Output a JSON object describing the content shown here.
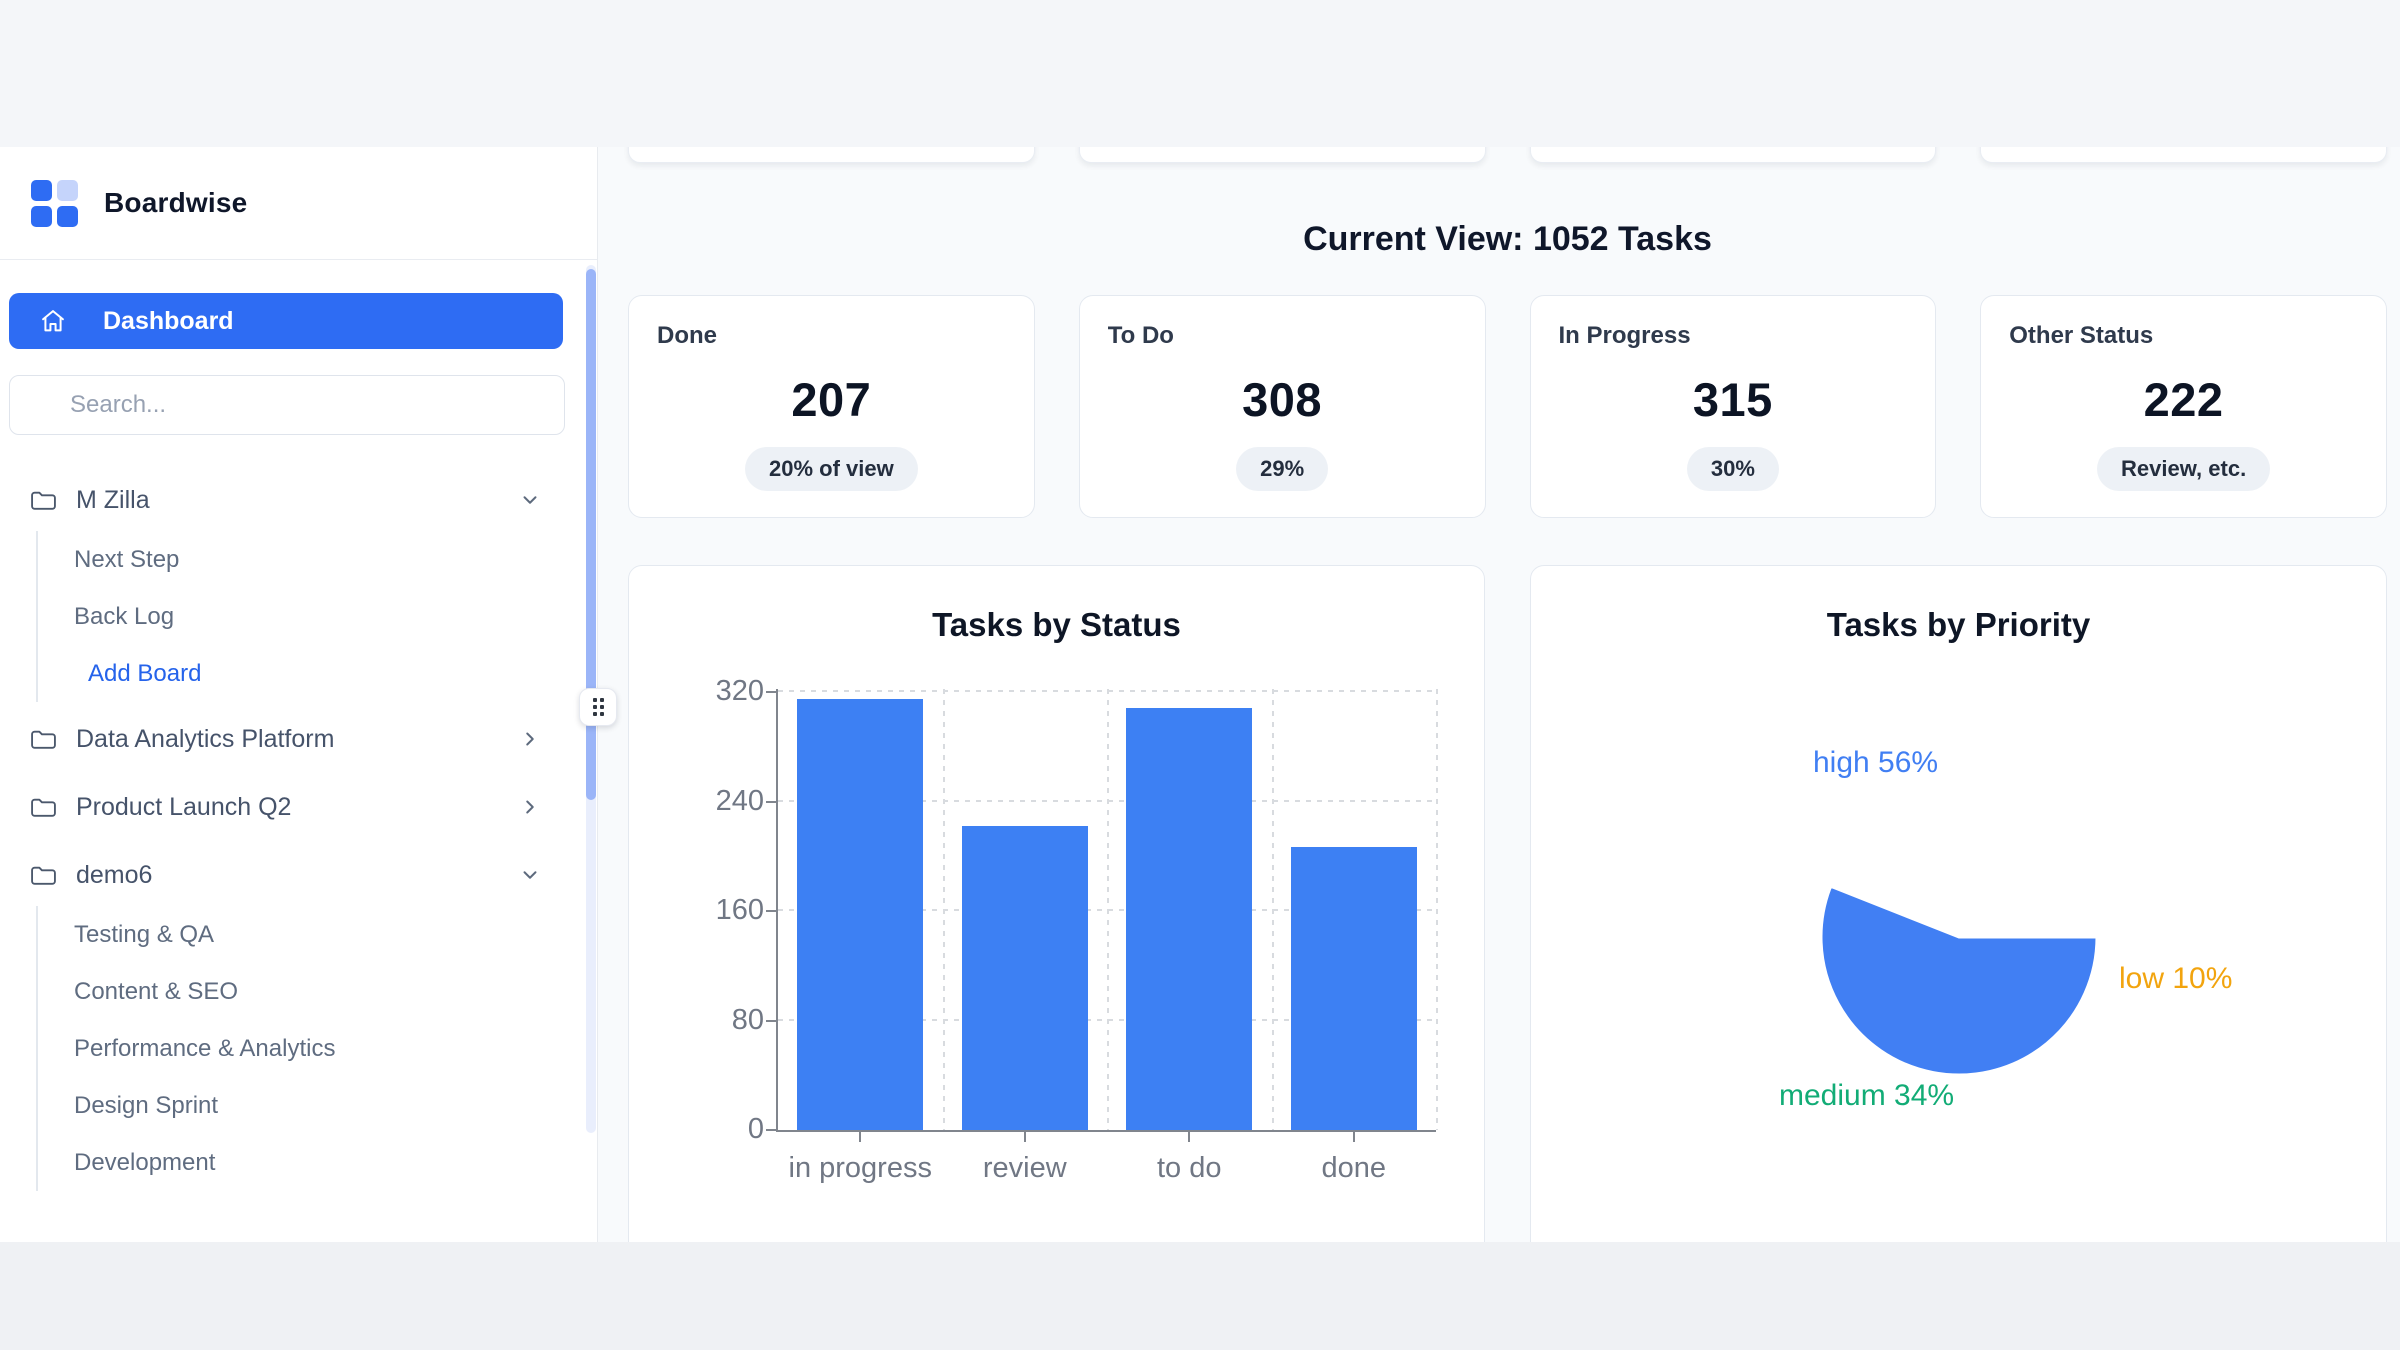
{
  "brand": {
    "name": "Boardwise"
  },
  "nav": {
    "dashboard_label": "Dashboard"
  },
  "search": {
    "placeholder": "Search..."
  },
  "sidebar": {
    "groups": [
      {
        "label": "M Zilla",
        "chevron": "down",
        "children": [
          "Next Step",
          "Back Log"
        ],
        "action": "Add Board"
      },
      {
        "label": "Data Analytics Platform",
        "chevron": "right"
      },
      {
        "label": "Product Launch Q2",
        "chevron": "right"
      },
      {
        "label": "demo6",
        "chevron": "down",
        "children": [
          "Testing & QA",
          "Content & SEO",
          "Performance & Analytics",
          "Design Sprint",
          "Development"
        ]
      }
    ]
  },
  "header": {
    "title": "Current View: 1052 Tasks"
  },
  "stats": [
    {
      "label": "Done",
      "value": "207",
      "badge": "20% of view"
    },
    {
      "label": "To Do",
      "value": "308",
      "badge": "29%"
    },
    {
      "label": "In Progress",
      "value": "315",
      "badge": "30%"
    },
    {
      "label": "Other Status",
      "value": "222",
      "badge": "Review, etc."
    }
  ],
  "colors": {
    "accent_blue": "#2e6cf3",
    "bar_blue": "#3d80f3",
    "pie_high_blue": "#417ff3",
    "pie_medium_green": "#12ac76",
    "pie_low_orange": "#f2a40e"
  },
  "chart_data": [
    {
      "type": "bar",
      "title": "Tasks by Status",
      "categories": [
        "in progress",
        "review",
        "to do",
        "done"
      ],
      "values": [
        315,
        222,
        308,
        207
      ],
      "xlabel": "",
      "ylabel": "",
      "ylim": [
        0,
        320
      ],
      "yticks": [
        0,
        80,
        160,
        240,
        320
      ],
      "bar_color": "#3d80f3",
      "grid": "dashed",
      "legend": "none"
    },
    {
      "type": "pie",
      "title": "Tasks by Priority",
      "start_angle": "3-oclock",
      "direction": "clockwise",
      "slices": [
        {
          "label": "low",
          "pct": 10,
          "color": "#f2a40e"
        },
        {
          "label": "medium",
          "pct": 34,
          "color": "#12ac76"
        },
        {
          "label": "high",
          "pct": 56,
          "color": "#417ff3"
        }
      ],
      "label_format": "{label} {pct}%"
    }
  ]
}
